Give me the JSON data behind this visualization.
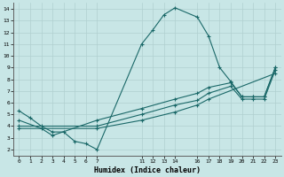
{
  "xlabel": "Humidex (Indice chaleur)",
  "bg_color": "#c8e6e6",
  "grid_color": "#b0d0d0",
  "line_color": "#1a6868",
  "xlim": [
    -0.5,
    23.5
  ],
  "ylim": [
    1.5,
    14.5
  ],
  "xticks": [
    0,
    1,
    2,
    3,
    4,
    5,
    6,
    7,
    11,
    12,
    13,
    14,
    16,
    17,
    18,
    19,
    20,
    21,
    22,
    23
  ],
  "yticks": [
    2,
    3,
    4,
    5,
    6,
    7,
    8,
    9,
    10,
    11,
    12,
    13,
    14
  ],
  "series1_x": [
    0,
    1,
    2,
    3,
    4,
    5,
    6,
    7,
    11,
    12,
    13,
    14,
    16,
    17,
    18,
    19,
    20,
    21,
    22,
    23
  ],
  "series1_y": [
    5.3,
    4.7,
    4.0,
    3.5,
    3.5,
    2.7,
    2.5,
    2.0,
    11.0,
    12.2,
    13.5,
    14.1,
    13.3,
    11.7,
    9.0,
    7.8,
    6.5,
    6.5,
    6.5,
    9.0
  ],
  "series2_x": [
    0,
    2,
    3,
    7,
    11,
    14,
    16,
    17,
    19,
    20,
    21,
    22,
    23
  ],
  "series2_y": [
    4.5,
    3.8,
    3.2,
    4.5,
    5.5,
    6.3,
    6.8,
    7.3,
    7.7,
    6.5,
    6.5,
    6.5,
    9.0
  ],
  "series3_x": [
    0,
    7,
    11,
    14,
    16,
    17,
    19,
    20,
    21,
    22,
    23
  ],
  "series3_y": [
    4.0,
    4.0,
    5.0,
    5.8,
    6.2,
    6.8,
    7.4,
    6.3,
    6.3,
    6.3,
    8.8
  ],
  "series4_x": [
    0,
    7,
    11,
    14,
    16,
    17,
    23
  ],
  "series4_y": [
    3.8,
    3.8,
    4.5,
    5.2,
    5.8,
    6.3,
    8.5
  ]
}
